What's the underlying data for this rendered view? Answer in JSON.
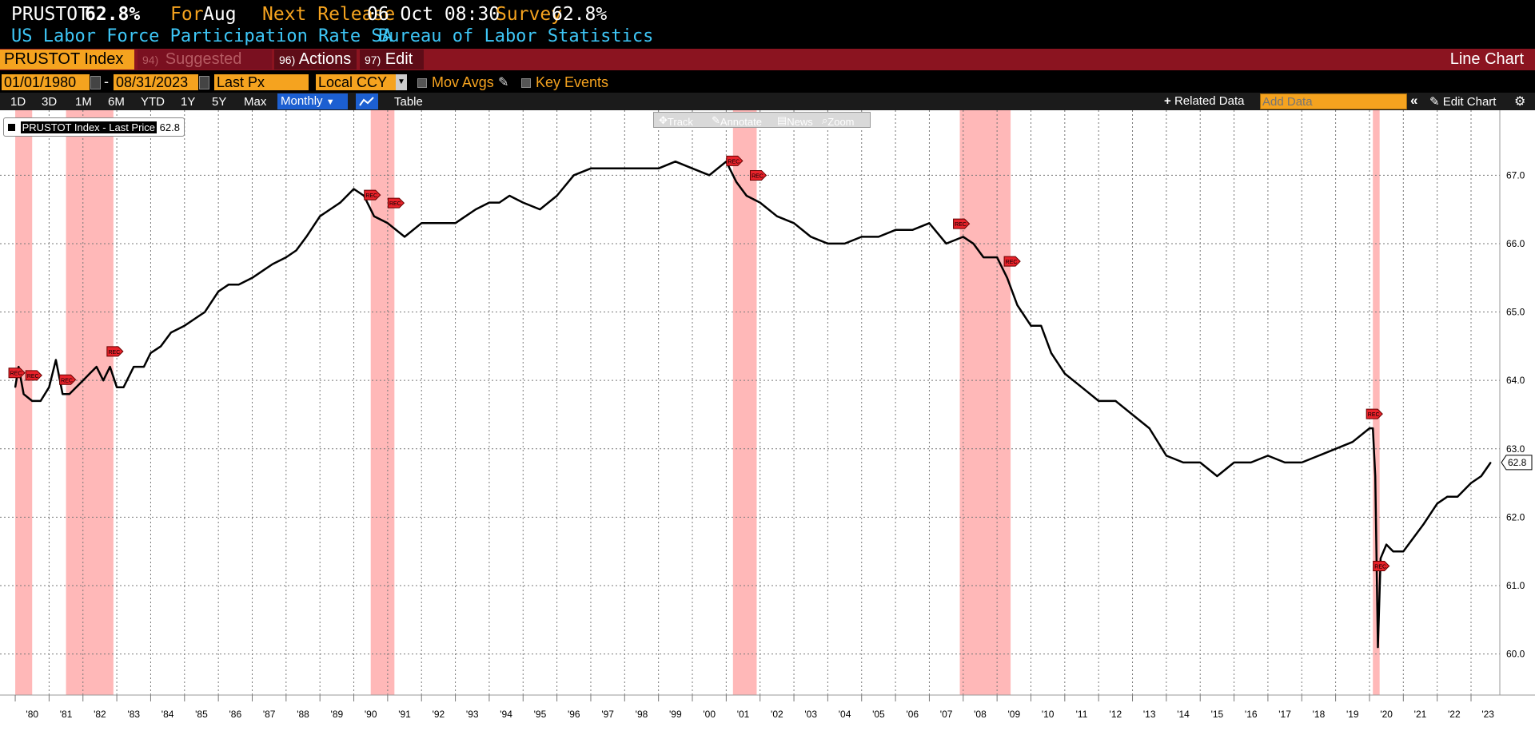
{
  "header": {
    "ticker": "PRUSTOT",
    "last_value": "62.8%",
    "for_label": "For",
    "for_value": "Aug",
    "next_release_label": "Next Release",
    "next_release_value": "06 Oct 08:30",
    "survey_label": "Survey",
    "survey_value": "62.8%",
    "description": "US Labor Force Participation Rate SA",
    "source": "Bureau of Labor Statistics"
  },
  "toolbar": {
    "security": "PRUSTOT Index",
    "suggested_num": "94)",
    "suggested_label": "Suggested Charts",
    "actions_num": "96)",
    "actions_label": "Actions",
    "edit_num": "97)",
    "edit_label": "Edit",
    "chart_type": "Line Chart"
  },
  "settings": {
    "start_date": "01/01/1980",
    "end_date": "08/31/2023",
    "dash": "-",
    "field": "Last Px",
    "currency": "Local CCY",
    "mov_avgs": "Mov Avgs",
    "key_events": "Key Events"
  },
  "ranges": {
    "items": [
      "1D",
      "3D",
      "1M",
      "6M",
      "YTD",
      "1Y",
      "5Y",
      "Max"
    ],
    "frequency": "Monthly",
    "table": "Table",
    "related_data": "Related Data",
    "add_data_placeholder": "Add Data",
    "edit_chart": "Edit Chart"
  },
  "chart_tools": {
    "track": "Track",
    "annotate": "Annotate",
    "news": "News",
    "zoom": "Zoom"
  },
  "legend": {
    "label": "PRUSTOT Index - Last Price",
    "value": "62.8"
  },
  "colors": {
    "background": "#ffffff",
    "line": "#000000",
    "recession": "#ffb8b8",
    "accent": "#f5a31f",
    "toolbar": "#8b1420",
    "cyan": "#3ec7f7"
  },
  "chart_data": {
    "type": "line",
    "title": "",
    "xlabel": "",
    "ylabel": "",
    "ylim": [
      59.4,
      67.95
    ],
    "xlim": [
      1979.55,
      2023.85
    ],
    "y_ticks": [
      "60.0",
      "61.0",
      "62.0",
      "63.0",
      "64.0",
      "65.0",
      "66.0",
      "67.0"
    ],
    "x_ticks": [
      "'80",
      "'81",
      "'82",
      "'83",
      "'84",
      "'85",
      "'86",
      "'87",
      "'88",
      "'89",
      "'90",
      "'91",
      "'92",
      "'93",
      "'94",
      "'95",
      "'96",
      "'97",
      "'98",
      "'99",
      "'00",
      "'01",
      "'02",
      "'03",
      "'04",
      "'05",
      "'06",
      "'07",
      "'08",
      "'09",
      "'10",
      "'11",
      "'12",
      "'13",
      "'14",
      "'15",
      "'16",
      "'17",
      "'18",
      "'19",
      "'20",
      "'21",
      "'22",
      "'23"
    ],
    "grid": true,
    "last_value_label": "62.8",
    "recessions": [
      [
        1980.0,
        1980.5
      ],
      [
        1981.5,
        1982.9
      ],
      [
        1990.5,
        1991.2
      ],
      [
        2001.2,
        2001.9
      ],
      [
        2007.9,
        2009.4
      ],
      [
        2020.1,
        2020.3
      ]
    ],
    "event_marker_label": "REC",
    "series": [
      {
        "name": "PRUSTOT Index - Last Price",
        "x": [
          1980.0,
          1980.1,
          1980.25,
          1980.5,
          1980.75,
          1981.0,
          1981.2,
          1981.4,
          1981.6,
          1981.8,
          1982.0,
          1982.2,
          1982.4,
          1982.6,
          1982.8,
          1983.0,
          1983.2,
          1983.5,
          1983.8,
          1984.0,
          1984.3,
          1984.6,
          1985.0,
          1985.3,
          1985.6,
          1986.0,
          1986.3,
          1986.6,
          1987.0,
          1987.3,
          1987.6,
          1988.0,
          1988.3,
          1988.6,
          1989.0,
          1989.3,
          1989.6,
          1990.0,
          1990.3,
          1990.6,
          1991.0,
          1991.5,
          1992.0,
          1992.3,
          1992.6,
          1993.0,
          1993.3,
          1993.6,
          1994.0,
          1994.3,
          1994.6,
          1995.0,
          1995.5,
          1996.0,
          1996.5,
          1997.0,
          1997.5,
          1998.0,
          1998.5,
          1999.0,
          1999.5,
          2000.0,
          2000.5,
          2001.0,
          2001.3,
          2001.6,
          2002.0,
          2002.5,
          2003.0,
          2003.5,
          2004.0,
          2004.5,
          2005.0,
          2005.5,
          2006.0,
          2006.5,
          2007.0,
          2007.5,
          2008.0,
          2008.3,
          2008.6,
          2009.0,
          2009.3,
          2009.6,
          2010.0,
          2010.3,
          2010.6,
          2011.0,
          2011.5,
          2012.0,
          2012.5,
          2013.0,
          2013.5,
          2014.0,
          2014.5,
          2015.0,
          2015.5,
          2016.0,
          2016.5,
          2017.0,
          2017.5,
          2018.0,
          2018.5,
          2019.0,
          2019.5,
          2020.0,
          2020.1,
          2020.17,
          2020.25,
          2020.33,
          2020.5,
          2020.7,
          2021.0,
          2021.3,
          2021.6,
          2022.0,
          2022.3,
          2022.6,
          2023.0,
          2023.3,
          2023.58
        ],
        "y": [
          63.9,
          64.2,
          63.8,
          63.7,
          63.7,
          63.9,
          64.3,
          63.8,
          63.8,
          63.9,
          64.0,
          64.1,
          64.2,
          64.0,
          64.2,
          63.9,
          63.9,
          64.2,
          64.2,
          64.4,
          64.5,
          64.7,
          64.8,
          64.9,
          65.0,
          65.3,
          65.4,
          65.4,
          65.5,
          65.6,
          65.7,
          65.8,
          65.9,
          66.1,
          66.4,
          66.5,
          66.6,
          66.8,
          66.7,
          66.4,
          66.3,
          66.1,
          66.3,
          66.3,
          66.3,
          66.3,
          66.4,
          66.5,
          66.6,
          66.6,
          66.7,
          66.6,
          66.5,
          66.7,
          67.0,
          67.1,
          67.1,
          67.1,
          67.1,
          67.1,
          67.2,
          67.1,
          67.0,
          67.2,
          66.9,
          66.7,
          66.6,
          66.4,
          66.3,
          66.1,
          66.0,
          66.0,
          66.1,
          66.1,
          66.2,
          66.2,
          66.3,
          66.0,
          66.1,
          66.0,
          65.8,
          65.8,
          65.5,
          65.1,
          64.8,
          64.8,
          64.4,
          64.1,
          63.9,
          63.7,
          63.7,
          63.5,
          63.3,
          62.9,
          62.8,
          62.8,
          62.6,
          62.8,
          62.8,
          62.9,
          62.8,
          62.8,
          62.9,
          63.0,
          63.1,
          63.3,
          63.3,
          62.6,
          60.1,
          61.4,
          61.6,
          61.5,
          61.5,
          61.7,
          61.9,
          62.2,
          62.3,
          62.3,
          62.5,
          62.6,
          62.8
        ]
      }
    ]
  }
}
